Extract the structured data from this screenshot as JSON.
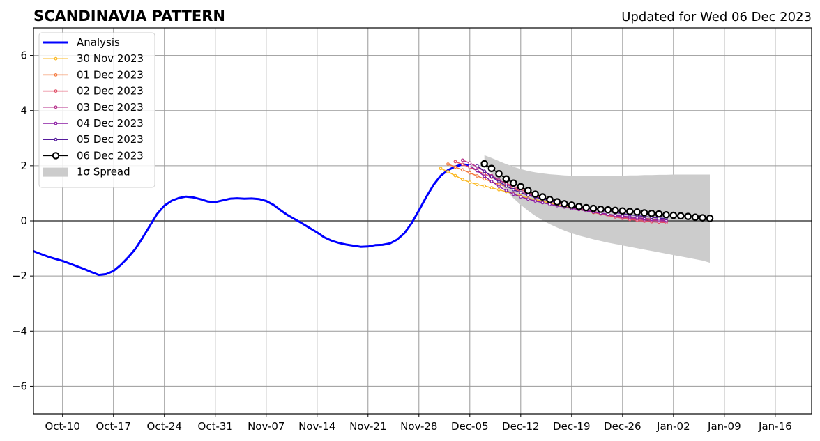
{
  "chart_data": {
    "type": "line",
    "title": "SCANDINAVIA PATTERN",
    "subtitle": "Updated for Wed 06 Dec 2023",
    "xlabel": "",
    "ylabel": "",
    "ylim": [
      -7,
      7
    ],
    "xlim": [
      "2023-10-06",
      "2024-01-21"
    ],
    "yticks": [
      -6,
      -4,
      -2,
      0,
      2,
      4,
      6
    ],
    "ytick_labels": [
      "−6",
      "−4",
      "−2",
      "0",
      "2",
      "4",
      "6"
    ],
    "xticks": [
      "2023-10-10",
      "2023-10-17",
      "2023-10-24",
      "2023-10-31",
      "2023-11-07",
      "2023-11-14",
      "2023-11-21",
      "2023-11-28",
      "2023-12-05",
      "2023-12-12",
      "2023-12-19",
      "2023-12-26",
      "2024-01-02",
      "2024-01-09",
      "2024-01-16"
    ],
    "xtick_labels": [
      "Oct-10",
      "Oct-17",
      "Oct-24",
      "Oct-31",
      "Nov-07",
      "Nov-14",
      "Nov-21",
      "Nov-28",
      "Dec-05",
      "Dec-12",
      "Dec-19",
      "Dec-26",
      "Jan-02",
      "Jan-09",
      "Jan-16"
    ],
    "grid": true,
    "legend_position": "top-left",
    "series": [
      {
        "name": "Analysis",
        "color": "#0000ff",
        "kind": "analysis",
        "points": [
          [
            "2023-10-06",
            -1.1
          ],
          [
            "2023-10-07",
            -1.2
          ],
          [
            "2023-10-08",
            -1.3
          ],
          [
            "2023-10-09",
            -1.38
          ],
          [
            "2023-10-10",
            -1.45
          ],
          [
            "2023-10-11",
            -1.55
          ],
          [
            "2023-10-12",
            -1.65
          ],
          [
            "2023-10-13",
            -1.75
          ],
          [
            "2023-10-14",
            -1.86
          ],
          [
            "2023-10-15",
            -1.96
          ],
          [
            "2023-10-16",
            -1.93
          ],
          [
            "2023-10-17",
            -1.82
          ],
          [
            "2023-10-18",
            -1.6
          ],
          [
            "2023-10-19",
            -1.33
          ],
          [
            "2023-10-20",
            -1.02
          ],
          [
            "2023-10-21",
            -0.62
          ],
          [
            "2023-10-22",
            -0.18
          ],
          [
            "2023-10-23",
            0.25
          ],
          [
            "2023-10-24",
            0.55
          ],
          [
            "2023-10-25",
            0.73
          ],
          [
            "2023-10-26",
            0.83
          ],
          [
            "2023-10-27",
            0.88
          ],
          [
            "2023-10-28",
            0.85
          ],
          [
            "2023-10-29",
            0.78
          ],
          [
            "2023-10-30",
            0.7
          ],
          [
            "2023-10-31",
            0.68
          ],
          [
            "2023-11-01",
            0.74
          ],
          [
            "2023-11-02",
            0.8
          ],
          [
            "2023-11-03",
            0.82
          ],
          [
            "2023-11-04",
            0.8
          ],
          [
            "2023-11-05",
            0.81
          ],
          [
            "2023-11-06",
            0.79
          ],
          [
            "2023-11-07",
            0.72
          ],
          [
            "2023-11-08",
            0.58
          ],
          [
            "2023-11-09",
            0.38
          ],
          [
            "2023-11-10",
            0.2
          ],
          [
            "2023-11-11",
            0.05
          ],
          [
            "2023-11-12",
            -0.1
          ],
          [
            "2023-11-13",
            -0.26
          ],
          [
            "2023-11-14",
            -0.42
          ],
          [
            "2023-11-15",
            -0.6
          ],
          [
            "2023-11-16",
            -0.72
          ],
          [
            "2023-11-17",
            -0.8
          ],
          [
            "2023-11-18",
            -0.86
          ],
          [
            "2023-11-19",
            -0.9
          ],
          [
            "2023-11-20",
            -0.94
          ],
          [
            "2023-11-21",
            -0.93
          ],
          [
            "2023-11-22",
            -0.88
          ],
          [
            "2023-11-23",
            -0.87
          ],
          [
            "2023-11-24",
            -0.82
          ],
          [
            "2023-11-25",
            -0.68
          ],
          [
            "2023-11-26",
            -0.45
          ],
          [
            "2023-11-27",
            -0.08
          ],
          [
            "2023-11-28",
            0.38
          ],
          [
            "2023-11-29",
            0.86
          ],
          [
            "2023-11-30",
            1.3
          ],
          [
            "2023-12-01",
            1.64
          ],
          [
            "2023-12-02",
            1.84
          ],
          [
            "2023-12-03",
            1.97
          ],
          [
            "2023-12-04",
            2.05
          ],
          [
            "2023-12-05",
            2.02
          ]
        ]
      },
      {
        "name": "30 Nov 2023",
        "color": "#fbb923",
        "kind": "forecast",
        "start": "2023-12-01",
        "values": [
          1.9,
          1.78,
          1.64,
          1.5,
          1.4,
          1.32,
          1.26,
          1.2,
          1.13,
          1.06,
          0.98,
          0.9,
          0.83,
          0.77,
          0.71,
          0.65,
          0.58,
          0.52,
          0.46,
          0.41,
          0.36,
          0.31,
          0.27,
          0.23,
          0.2,
          0.17,
          0.14,
          0.11,
          0.09,
          0.07,
          0.05,
          0.04
        ]
      },
      {
        "name": "01 Dec 2023",
        "color": "#f37a3f",
        "kind": "forecast",
        "start": "2023-12-02",
        "values": [
          2.06,
          1.95,
          1.85,
          1.74,
          1.63,
          1.52,
          1.42,
          1.33,
          1.25,
          1.16,
          1.07,
          0.98,
          0.9,
          0.82,
          0.74,
          0.66,
          0.58,
          0.5,
          0.43,
          0.36,
          0.3,
          0.25,
          0.2,
          0.16,
          0.12,
          0.09,
          0.06,
          0.04,
          0.02,
          0.01,
          0.0
        ]
      },
      {
        "name": "02 Dec 2023",
        "color": "#e04e66",
        "kind": "forecast",
        "start": "2023-12-03",
        "values": [
          2.15,
          2.05,
          1.94,
          1.82,
          1.7,
          1.58,
          1.47,
          1.36,
          1.25,
          1.14,
          1.04,
          0.95,
          0.86,
          0.78,
          0.7,
          0.62,
          0.54,
          0.46,
          0.38,
          0.31,
          0.25,
          0.19,
          0.14,
          0.09,
          0.05,
          0.02,
          -0.01,
          -0.03,
          -0.05,
          -0.06
        ]
      },
      {
        "name": "03 Dec 2023",
        "color": "#b62e8a",
        "kind": "forecast",
        "start": "2023-12-04",
        "values": [
          2.2,
          2.1,
          1.96,
          1.8,
          1.64,
          1.48,
          1.34,
          1.2,
          1.08,
          0.97,
          0.88,
          0.8,
          0.72,
          0.65,
          0.58,
          0.52,
          0.46,
          0.4,
          0.34,
          0.28,
          0.23,
          0.18,
          0.14,
          0.1,
          0.07,
          0.04,
          0.02,
          0.0,
          -0.01
        ]
      },
      {
        "name": "04 Dec 2023",
        "color": "#8a1ca3",
        "kind": "forecast",
        "start": "2023-12-05",
        "values": [
          2.0,
          1.82,
          1.62,
          1.43,
          1.25,
          1.1,
          0.97,
          0.87,
          0.79,
          0.72,
          0.66,
          0.6,
          0.55,
          0.5,
          0.45,
          0.41,
          0.36,
          0.32,
          0.28,
          0.24,
          0.2,
          0.17,
          0.14,
          0.11,
          0.08,
          0.06,
          0.04,
          0.02
        ]
      },
      {
        "name": "05 Dec 2023",
        "color": "#551b9c",
        "kind": "forecast",
        "start": "2023-12-06",
        "values": [
          2.0,
          1.8,
          1.6,
          1.42,
          1.26,
          1.13,
          1.02,
          0.93,
          0.86,
          0.79,
          0.73,
          0.67,
          0.62,
          0.57,
          0.52,
          0.47,
          0.42,
          0.38,
          0.34,
          0.3,
          0.26,
          0.22,
          0.19,
          0.16,
          0.13,
          0.1,
          0.08
        ]
      },
      {
        "name": "06 Dec 2023",
        "color": "#000000",
        "kind": "current",
        "start": "2023-12-07",
        "values": [
          2.07,
          1.9,
          1.71,
          1.52,
          1.37,
          1.24,
          1.1,
          0.97,
          0.87,
          0.77,
          0.69,
          0.62,
          0.57,
          0.52,
          0.48,
          0.45,
          0.42,
          0.4,
          0.38,
          0.36,
          0.34,
          0.32,
          0.29,
          0.27,
          0.25,
          0.22,
          0.2,
          0.18,
          0.16,
          0.13,
          0.11,
          0.09
        ]
      },
      {
        "name": "1σ Spread",
        "color": "#cccccc",
        "kind": "band",
        "start": "2023-12-07",
        "upper": [
          2.38,
          2.28,
          2.17,
          2.06,
          1.96,
          1.88,
          1.81,
          1.76,
          1.72,
          1.69,
          1.67,
          1.65,
          1.64,
          1.63,
          1.63,
          1.63,
          1.63,
          1.63,
          1.64,
          1.64,
          1.65,
          1.65,
          1.66,
          1.66,
          1.67,
          1.67,
          1.68,
          1.68,
          1.68,
          1.68,
          1.68,
          1.68
        ],
        "lower": [
          2.0,
          1.7,
          1.4,
          1.1,
          0.82,
          0.58,
          0.37,
          0.18,
          0.02,
          -0.12,
          -0.24,
          -0.35,
          -0.45,
          -0.53,
          -0.6,
          -0.67,
          -0.73,
          -0.79,
          -0.84,
          -0.89,
          -0.94,
          -0.99,
          -1.04,
          -1.09,
          -1.14,
          -1.19,
          -1.24,
          -1.29,
          -1.34,
          -1.39,
          -1.44,
          -1.52
        ]
      }
    ]
  }
}
